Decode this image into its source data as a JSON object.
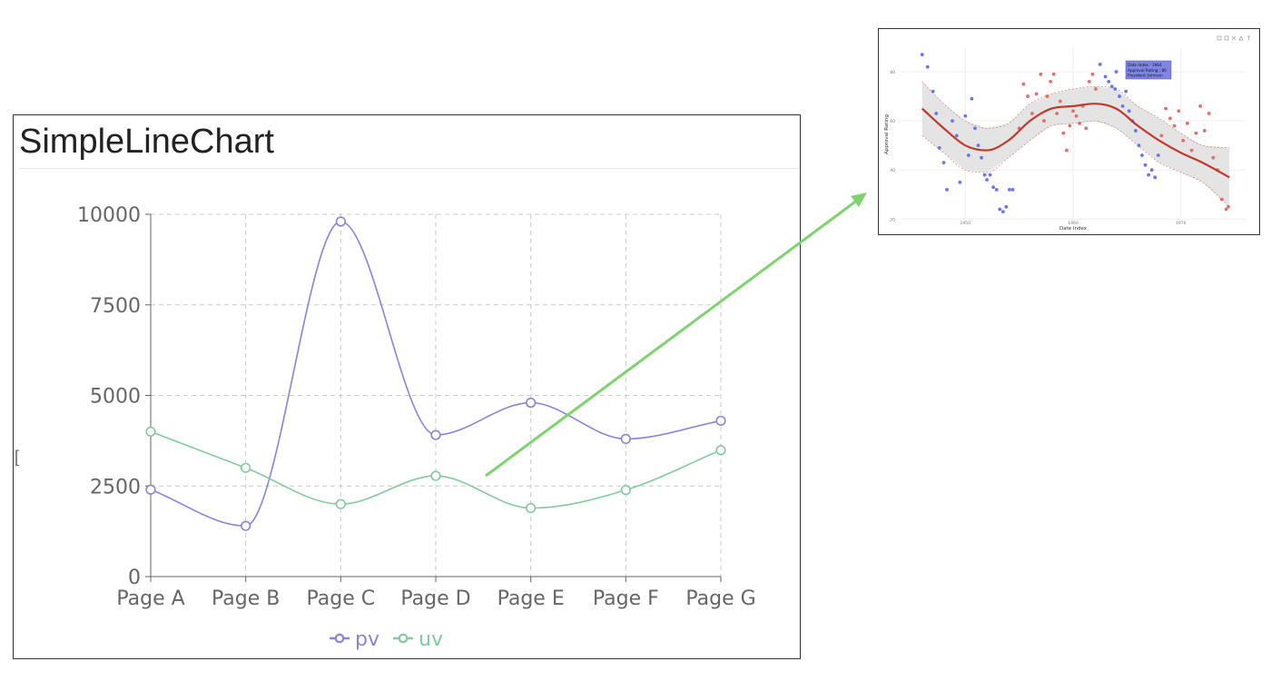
{
  "chart_data": [
    {
      "type": "line",
      "title": "SimpleLineChart",
      "categories": [
        "Page A",
        "Page B",
        "Page C",
        "Page D",
        "Page E",
        "Page F",
        "Page G"
      ],
      "series": [
        {
          "name": "pv",
          "values": [
            2400,
            1398,
            9800,
            3908,
            4800,
            3800,
            4300
          ],
          "color": "#8884d8"
        },
        {
          "name": "uv",
          "values": [
            4000,
            3000,
            2000,
            2780,
            1890,
            2390,
            3490
          ],
          "color": "#82ca9d"
        }
      ],
      "ylim": [
        0,
        10000
      ],
      "y_ticks": [
        "0",
        "2500",
        "5000",
        "7500",
        "10000"
      ],
      "grid": true,
      "legend": "bottom"
    },
    {
      "type": "scatter",
      "title": "",
      "xlabel": "Date Index",
      "ylabel": "Approval Rating",
      "x_ticks": [
        1950,
        1960,
        1970
      ],
      "y_ticks": [
        20,
        40,
        60,
        80
      ],
      "xlim": [
        1944,
        1976
      ],
      "ylim": [
        19,
        90
      ],
      "tooltip": [
        "Date Index : 1964",
        "Approval Rating : 80",
        "President: Johnson"
      ],
      "series": [
        {
          "name": "",
          "color": "#6b74e8",
          "points": [
            [
              1946,
              87
            ],
            [
              1946.5,
              82
            ],
            [
              1947,
              72
            ],
            [
              1947.3,
              63
            ],
            [
              1947.6,
              49
            ],
            [
              1948,
              43
            ],
            [
              1948.3,
              32
            ],
            [
              1948.8,
              60
            ],
            [
              1949.2,
              54
            ],
            [
              1949.5,
              35
            ],
            [
              1950,
              62
            ],
            [
              1950.3,
              46
            ],
            [
              1950.6,
              69
            ],
            [
              1950.9,
              57
            ],
            [
              1951.2,
              50
            ],
            [
              1951.5,
              45
            ],
            [
              1951.8,
              38
            ],
            [
              1952,
              36
            ],
            [
              1952.3,
              38
            ],
            [
              1952.6,
              33
            ],
            [
              1952.9,
              32
            ],
            [
              1953.2,
              24
            ],
            [
              1953.5,
              23
            ],
            [
              1953.8,
              25
            ],
            [
              1954.1,
              32
            ],
            [
              1954.4,
              32
            ],
            [
              1962.5,
              83
            ],
            [
              1963,
              78
            ],
            [
              1963.3,
              76
            ],
            [
              1963.6,
              74
            ],
            [
              1963.9,
              73
            ],
            [
              1964,
              80
            ],
            [
              1964.3,
              70
            ],
            [
              1964.6,
              66
            ],
            [
              1964.9,
              72
            ],
            [
              1965.2,
              64
            ],
            [
              1965.5,
              60
            ],
            [
              1965.8,
              56
            ],
            [
              1966.1,
              50
            ],
            [
              1966.4,
              46
            ],
            [
              1966.7,
              42
            ],
            [
              1967,
              38
            ],
            [
              1967.3,
              40
            ],
            [
              1967.6,
              37
            ],
            [
              1967.9,
              46
            ]
          ]
        },
        {
          "name": "",
          "color": "#e0706c",
          "points": [
            [
              1955,
              57
            ],
            [
              1955.4,
              75
            ],
            [
              1955.8,
              70
            ],
            [
              1956.2,
              63
            ],
            [
              1956.6,
              71
            ],
            [
              1957,
              79
            ],
            [
              1957.3,
              60
            ],
            [
              1957.6,
              70
            ],
            [
              1957.9,
              76
            ],
            [
              1958.2,
              79
            ],
            [
              1958.5,
              63
            ],
            [
              1958.8,
              68
            ],
            [
              1959.1,
              55
            ],
            [
              1959.4,
              48
            ],
            [
              1959.7,
              58
            ],
            [
              1960,
              64
            ],
            [
              1960.3,
              62
            ],
            [
              1960.6,
              59
            ],
            [
              1960.9,
              66
            ],
            [
              1961.2,
              57
            ],
            [
              1961.5,
              76
            ],
            [
              1961.8,
              79
            ],
            [
              1962.1,
              73
            ],
            [
              1968.2,
              54
            ],
            [
              1968.6,
              65
            ],
            [
              1969,
              61
            ],
            [
              1969.4,
              58
            ],
            [
              1969.8,
              64
            ],
            [
              1970.2,
              52
            ],
            [
              1970.6,
              59
            ],
            [
              1971,
              48
            ],
            [
              1971.4,
              55
            ],
            [
              1971.8,
              66
            ],
            [
              1972.2,
              56
            ],
            [
              1972.6,
              63
            ],
            [
              1973,
              45
            ],
            [
              1973.4,
              40
            ],
            [
              1973.8,
              28
            ],
            [
              1974.2,
              24
            ],
            [
              1974.4,
              25
            ]
          ]
        }
      ],
      "trend": {
        "color": "#c0392b",
        "x": [
          1946,
          1948,
          1950,
          1952,
          1954,
          1956,
          1958,
          1960,
          1962,
          1964,
          1966,
          1968,
          1970,
          1972,
          1974.5
        ],
        "y": [
          65,
          57,
          50,
          48,
          52,
          60,
          65,
          66,
          67,
          65,
          58,
          52,
          47,
          43,
          37
        ]
      },
      "band": {
        "upper": [
          76,
          67,
          60,
          57,
          59,
          67,
          71,
          73,
          74,
          73,
          66,
          61,
          55,
          50,
          49
        ],
        "lower": [
          54,
          47,
          40,
          39,
          45,
          52,
          58,
          59,
          60,
          57,
          50,
          43,
          39,
          35,
          25
        ]
      }
    }
  ]
}
